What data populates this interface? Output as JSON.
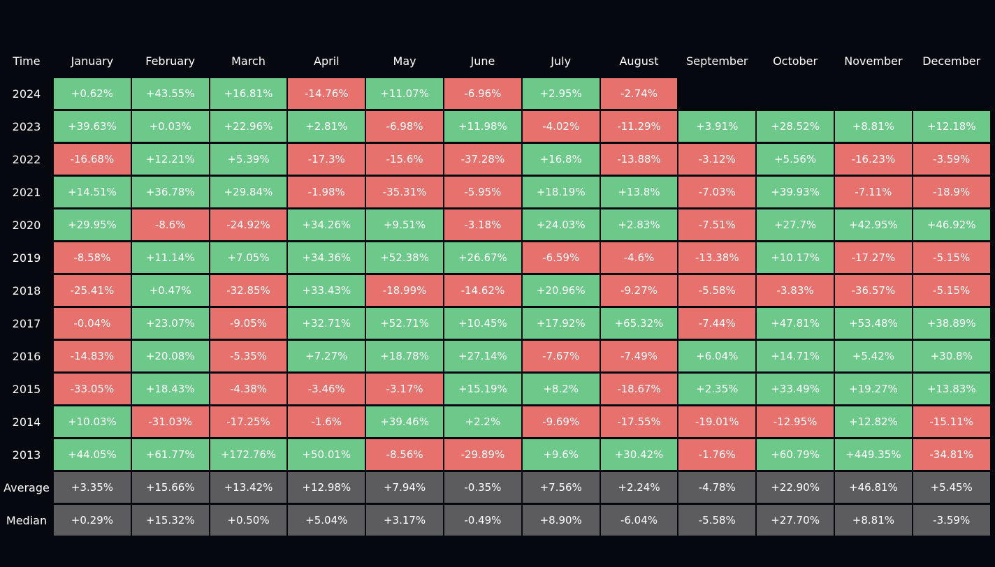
{
  "table": {
    "header": [
      "Time",
      "January",
      "February",
      "March",
      "April",
      "May",
      "June",
      "July",
      "August",
      "September",
      "October",
      "November",
      "December"
    ],
    "rows": [
      [
        "2024",
        "+0.62%",
        "+43.55%",
        "+16.81%",
        "-14.76%",
        "+11.07%",
        "-6.96%",
        "+2.95%",
        "-2.74%"
      ],
      [
        "2023",
        "+39.63%",
        "+0.03%",
        "+22.96%",
        "+2.81%",
        "-6.98%",
        "+11.98%",
        "-4.02%",
        "-11.29%",
        "+3.91%",
        "+28.52%",
        "+8.81%",
        "+12.18%"
      ],
      [
        "2022",
        "-16.68%",
        "+12.21%",
        "+5.39%",
        "-17.3%",
        "-15.6%",
        "-37.28%",
        "+16.8%",
        "-13.88%",
        "-3.12%",
        "+5.56%",
        "-16.23%",
        "-3.59%"
      ],
      [
        "2021",
        "+14.51%",
        "+36.78%",
        "+29.84%",
        "-1.98%",
        "-35.31%",
        "-5.95%",
        "+18.19%",
        "+13.8%",
        "-7.03%",
        "+39.93%",
        "-7.11%",
        "-18.9%"
      ],
      [
        "2020",
        "+29.95%",
        "-8.6%",
        "-24.92%",
        "+34.26%",
        "+9.51%",
        "-3.18%",
        "+24.03%",
        "+2.83%",
        "-7.51%",
        "+27.7%",
        "+42.95%",
        "+46.92%"
      ],
      [
        "2019",
        "-8.58%",
        "+11.14%",
        "+7.05%",
        "+34.36%",
        "+52.38%",
        "+26.67%",
        "-6.59%",
        "-4.6%",
        "-13.38%",
        "+10.17%",
        "-17.27%",
        "-5.15%"
      ],
      [
        "2018",
        "-25.41%",
        "+0.47%",
        "-32.85%",
        "+33.43%",
        "-18.99%",
        "-14.62%",
        "+20.96%",
        "-9.27%",
        "-5.58%",
        "-3.83%",
        "-36.57%",
        "-5.15%"
      ],
      [
        "2017",
        "-0.04%",
        "+23.07%",
        "-9.05%",
        "+32.71%",
        "+52.71%",
        "+10.45%",
        "+17.92%",
        "+65.32%",
        "-7.44%",
        "+47.81%",
        "+53.48%",
        "+38.89%"
      ],
      [
        "2016",
        "-14.83%",
        "+20.08%",
        "-5.35%",
        "+7.27%",
        "+18.78%",
        "+27.14%",
        "-7.67%",
        "-7.49%",
        "+6.04%",
        "+14.71%",
        "+5.42%",
        "+30.8%"
      ],
      [
        "2015",
        "-33.05%",
        "+18.43%",
        "-4.38%",
        "-3.46%",
        "-3.17%",
        "+15.19%",
        "+8.2%",
        "-18.67%",
        "+2.35%",
        "+33.49%",
        "+19.27%",
        "+13.83%"
      ],
      [
        "2014",
        "+10.03%",
        "-31.03%",
        "-17.25%",
        "-1.6%",
        "+39.46%",
        "+2.2%",
        "-9.69%",
        "-17.55%",
        "-19.01%",
        "-12.95%",
        "+12.82%",
        "-15.11%"
      ],
      [
        "2013",
        "+44.05%",
        "+61.77%",
        "+172.76%",
        "+50.01%",
        "-8.56%",
        "-29.89%",
        "+9.6%",
        "+30.42%",
        "-1.76%",
        "+60.79%",
        "+449.35%",
        "-34.81%"
      ]
    ],
    "summary_rows": [
      [
        "Average",
        "+3.35%",
        "+15.66%",
        "+13.42%",
        "+12.98%",
        "+7.94%",
        "-0.35%",
        "+7.56%",
        "+2.24%",
        "-4.78%",
        "+22.90%",
        "+46.81%",
        "+5.45%"
      ],
      [
        "Median",
        "+0.29%",
        "+15.32%",
        "+0.50%",
        "+5.04%",
        "+3.17%",
        "-0.49%",
        "+8.90%",
        "-6.04%",
        "-5.58%",
        "+27.70%",
        "+8.81%",
        "-3.59%"
      ]
    ]
  }
}
